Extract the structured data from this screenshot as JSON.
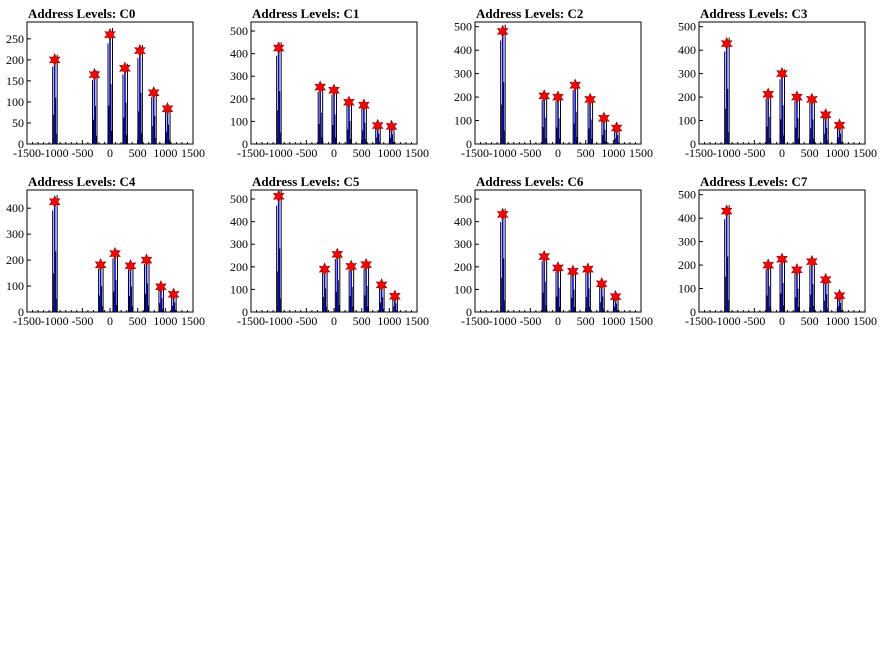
{
  "colors": {
    "spike": "#0000ff",
    "histogram": "#000000",
    "marker_fill": "#ff0000",
    "marker_stroke": "#8b0000",
    "frame": "#000000"
  },
  "marker_icon": "red-star-marker",
  "chart_data": [
    {
      "type": "histogram",
      "title": "Address Levels: C0",
      "xlim": [
        -1500,
        1500
      ],
      "ylim": [
        0,
        290
      ],
      "x_ticks": [
        -1500,
        -1000,
        -500,
        0,
        500,
        1000,
        1500
      ],
      "y_ticks": [
        0,
        50,
        100,
        150,
        200,
        250
      ],
      "peaks": [
        {
          "x": -1000,
          "y": 200
        },
        {
          "x": -280,
          "y": 165
        },
        {
          "x": 0,
          "y": 260
        },
        {
          "x": 270,
          "y": 180
        },
        {
          "x": 540,
          "y": 222
        },
        {
          "x": 790,
          "y": 122
        },
        {
          "x": 1040,
          "y": 84
        }
      ]
    },
    {
      "type": "histogram",
      "title": "Address Levels: C1",
      "xlim": [
        -1500,
        1500
      ],
      "ylim": [
        0,
        540
      ],
      "x_ticks": [
        -1500,
        -1000,
        -500,
        0,
        500,
        1000,
        1500
      ],
      "y_ticks": [
        0,
        100,
        200,
        300,
        400,
        500
      ],
      "peaks": [
        {
          "x": -1000,
          "y": 425
        },
        {
          "x": -250,
          "y": 252
        },
        {
          "x": 0,
          "y": 238
        },
        {
          "x": 270,
          "y": 185
        },
        {
          "x": 540,
          "y": 172
        },
        {
          "x": 790,
          "y": 82
        },
        {
          "x": 1040,
          "y": 78
        }
      ]
    },
    {
      "type": "histogram",
      "title": "Address Levels: C2",
      "xlim": [
        -1500,
        1500
      ],
      "ylim": [
        0,
        520
      ],
      "x_ticks": [
        -1500,
        -1000,
        -500,
        0,
        500,
        1000,
        1500
      ],
      "y_ticks": [
        0,
        100,
        200,
        300,
        400,
        500
      ],
      "peaks": [
        {
          "x": -1000,
          "y": 480
        },
        {
          "x": -250,
          "y": 205
        },
        {
          "x": 0,
          "y": 200
        },
        {
          "x": 310,
          "y": 250
        },
        {
          "x": 580,
          "y": 190
        },
        {
          "x": 830,
          "y": 110
        },
        {
          "x": 1060,
          "y": 68
        }
      ]
    },
    {
      "type": "histogram",
      "title": "Address Levels: C3",
      "xlim": [
        -1500,
        1500
      ],
      "ylim": [
        0,
        520
      ],
      "x_ticks": [
        -1500,
        -1000,
        -500,
        0,
        500,
        1000,
        1500
      ],
      "y_ticks": [
        0,
        100,
        200,
        300,
        400,
        500
      ],
      "peaks": [
        {
          "x": -1000,
          "y": 428
        },
        {
          "x": -250,
          "y": 212
        },
        {
          "x": 0,
          "y": 300
        },
        {
          "x": 270,
          "y": 200
        },
        {
          "x": 540,
          "y": 190
        },
        {
          "x": 790,
          "y": 125
        },
        {
          "x": 1040,
          "y": 80
        }
      ]
    },
    {
      "type": "histogram",
      "title": "Address Levels: C4",
      "xlim": [
        -1500,
        1500
      ],
      "ylim": [
        0,
        470
      ],
      "x_ticks": [
        -1500,
        -1000,
        -500,
        0,
        500,
        1000,
        1500
      ],
      "y_ticks": [
        0,
        100,
        200,
        300,
        400
      ],
      "peaks": [
        {
          "x": -1000,
          "y": 425
        },
        {
          "x": -170,
          "y": 182
        },
        {
          "x": 90,
          "y": 225
        },
        {
          "x": 370,
          "y": 178
        },
        {
          "x": 660,
          "y": 200
        },
        {
          "x": 920,
          "y": 97
        },
        {
          "x": 1150,
          "y": 68
        }
      ]
    },
    {
      "type": "histogram",
      "title": "Address Levels: C5",
      "xlim": [
        -1500,
        1500
      ],
      "ylim": [
        0,
        540
      ],
      "x_ticks": [
        -1500,
        -1000,
        -500,
        0,
        500,
        1000,
        1500
      ],
      "y_ticks": [
        0,
        100,
        200,
        300,
        400,
        500
      ],
      "peaks": [
        {
          "x": -1000,
          "y": 512
        },
        {
          "x": -170,
          "y": 190
        },
        {
          "x": 60,
          "y": 255
        },
        {
          "x": 310,
          "y": 202
        },
        {
          "x": 580,
          "y": 210
        },
        {
          "x": 860,
          "y": 120
        },
        {
          "x": 1100,
          "y": 70
        }
      ]
    },
    {
      "type": "histogram",
      "title": "Address Levels: C6",
      "xlim": [
        -1500,
        1500
      ],
      "ylim": [
        0,
        540
      ],
      "x_ticks": [
        -1500,
        -1000,
        -500,
        0,
        500,
        1000,
        1500
      ],
      "y_ticks": [
        0,
        100,
        200,
        300,
        400,
        500
      ],
      "peaks": [
        {
          "x": -1000,
          "y": 432
        },
        {
          "x": -250,
          "y": 245
        },
        {
          "x": 0,
          "y": 195
        },
        {
          "x": 270,
          "y": 180
        },
        {
          "x": 540,
          "y": 190
        },
        {
          "x": 790,
          "y": 125
        },
        {
          "x": 1040,
          "y": 68
        }
      ]
    },
    {
      "type": "histogram",
      "title": "Address Levels: C7",
      "xlim": [
        -1500,
        1500
      ],
      "ylim": [
        0,
        520
      ],
      "x_ticks": [
        -1500,
        -1000,
        -500,
        0,
        500,
        1000,
        1500
      ],
      "y_ticks": [
        0,
        100,
        200,
        300,
        400,
        500
      ],
      "peaks": [
        {
          "x": -1000,
          "y": 430
        },
        {
          "x": -250,
          "y": 200
        },
        {
          "x": 0,
          "y": 225
        },
        {
          "x": 270,
          "y": 180
        },
        {
          "x": 540,
          "y": 215
        },
        {
          "x": 790,
          "y": 138
        },
        {
          "x": 1040,
          "y": 70
        }
      ]
    }
  ]
}
